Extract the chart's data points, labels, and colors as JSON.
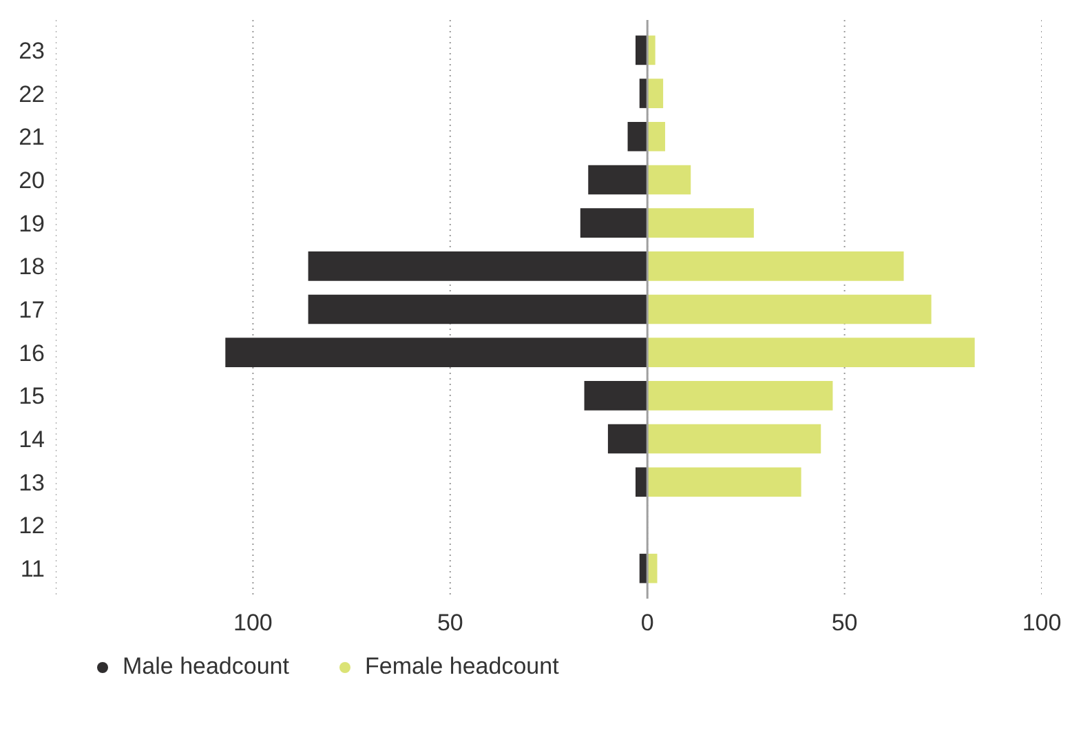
{
  "chart_data": {
    "type": "bar",
    "orientation": "horizontal",
    "categories": [
      "23",
      "22",
      "21",
      "20",
      "19",
      "18",
      "17",
      "16",
      "15",
      "14",
      "13",
      "12",
      "11"
    ],
    "series": [
      {
        "name": "Male headcount",
        "color": "#302e2f",
        "values": [
          -3,
          -2,
          -5,
          -15,
          -17,
          -86,
          -86,
          -107,
          -16,
          -10,
          -3,
          0,
          -2
        ]
      },
      {
        "name": "Female headcount",
        "color": "#dbe375",
        "values": [
          2,
          4,
          4.5,
          11,
          27,
          65,
          72,
          83,
          47,
          44,
          39,
          0,
          2.5
        ]
      }
    ],
    "stacked": true,
    "xlim": [
      -150,
      100
    ],
    "xticks": [
      {
        "value": -150,
        "label": null
      },
      {
        "value": -100,
        "label": "100"
      },
      {
        "value": -50,
        "label": "50"
      },
      0,
      50,
      100
    ],
    "ref_lines": [
      {
        "axis": "x",
        "value": 0,
        "label": null,
        "color": "#a0a0a0"
      }
    ],
    "grid": "x",
    "legend": "bottom left"
  }
}
